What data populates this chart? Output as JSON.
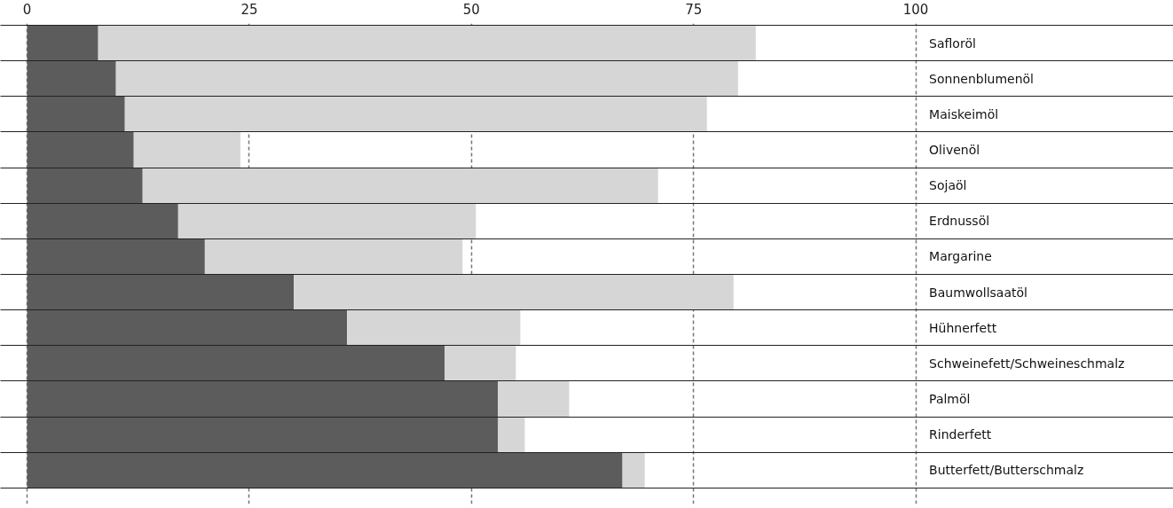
{
  "chart_data": {
    "type": "bar",
    "orientation": "horizontal",
    "stacked": true,
    "categories": [
      "Safloröl",
      "Sonnenblumenöl",
      "Maiskeimöl",
      "Olivenöl",
      "Sojaöl",
      "Erdnussöl",
      "Margarine",
      "Baumwollsaatöl",
      "Hühnerfett",
      "Schweinefett/Schweineschmalz",
      "Palmöl",
      "Rinderfett",
      "Butterfett/Butterschmalz"
    ],
    "series": [
      {
        "color": "#5c5c5c",
        "values": [
          8,
          10,
          11,
          12,
          13,
          17,
          20,
          30,
          36,
          47,
          53,
          53,
          67
        ]
      },
      {
        "color": "#d6d6d6",
        "values": [
          74,
          70,
          65.5,
          12,
          58,
          33.5,
          29,
          49.5,
          19.5,
          8,
          8,
          3,
          2.5
        ]
      }
    ],
    "xlim": [
      -3,
      129
    ],
    "xticks": [
      0,
      25,
      50,
      75,
      100
    ],
    "grid": "x"
  }
}
